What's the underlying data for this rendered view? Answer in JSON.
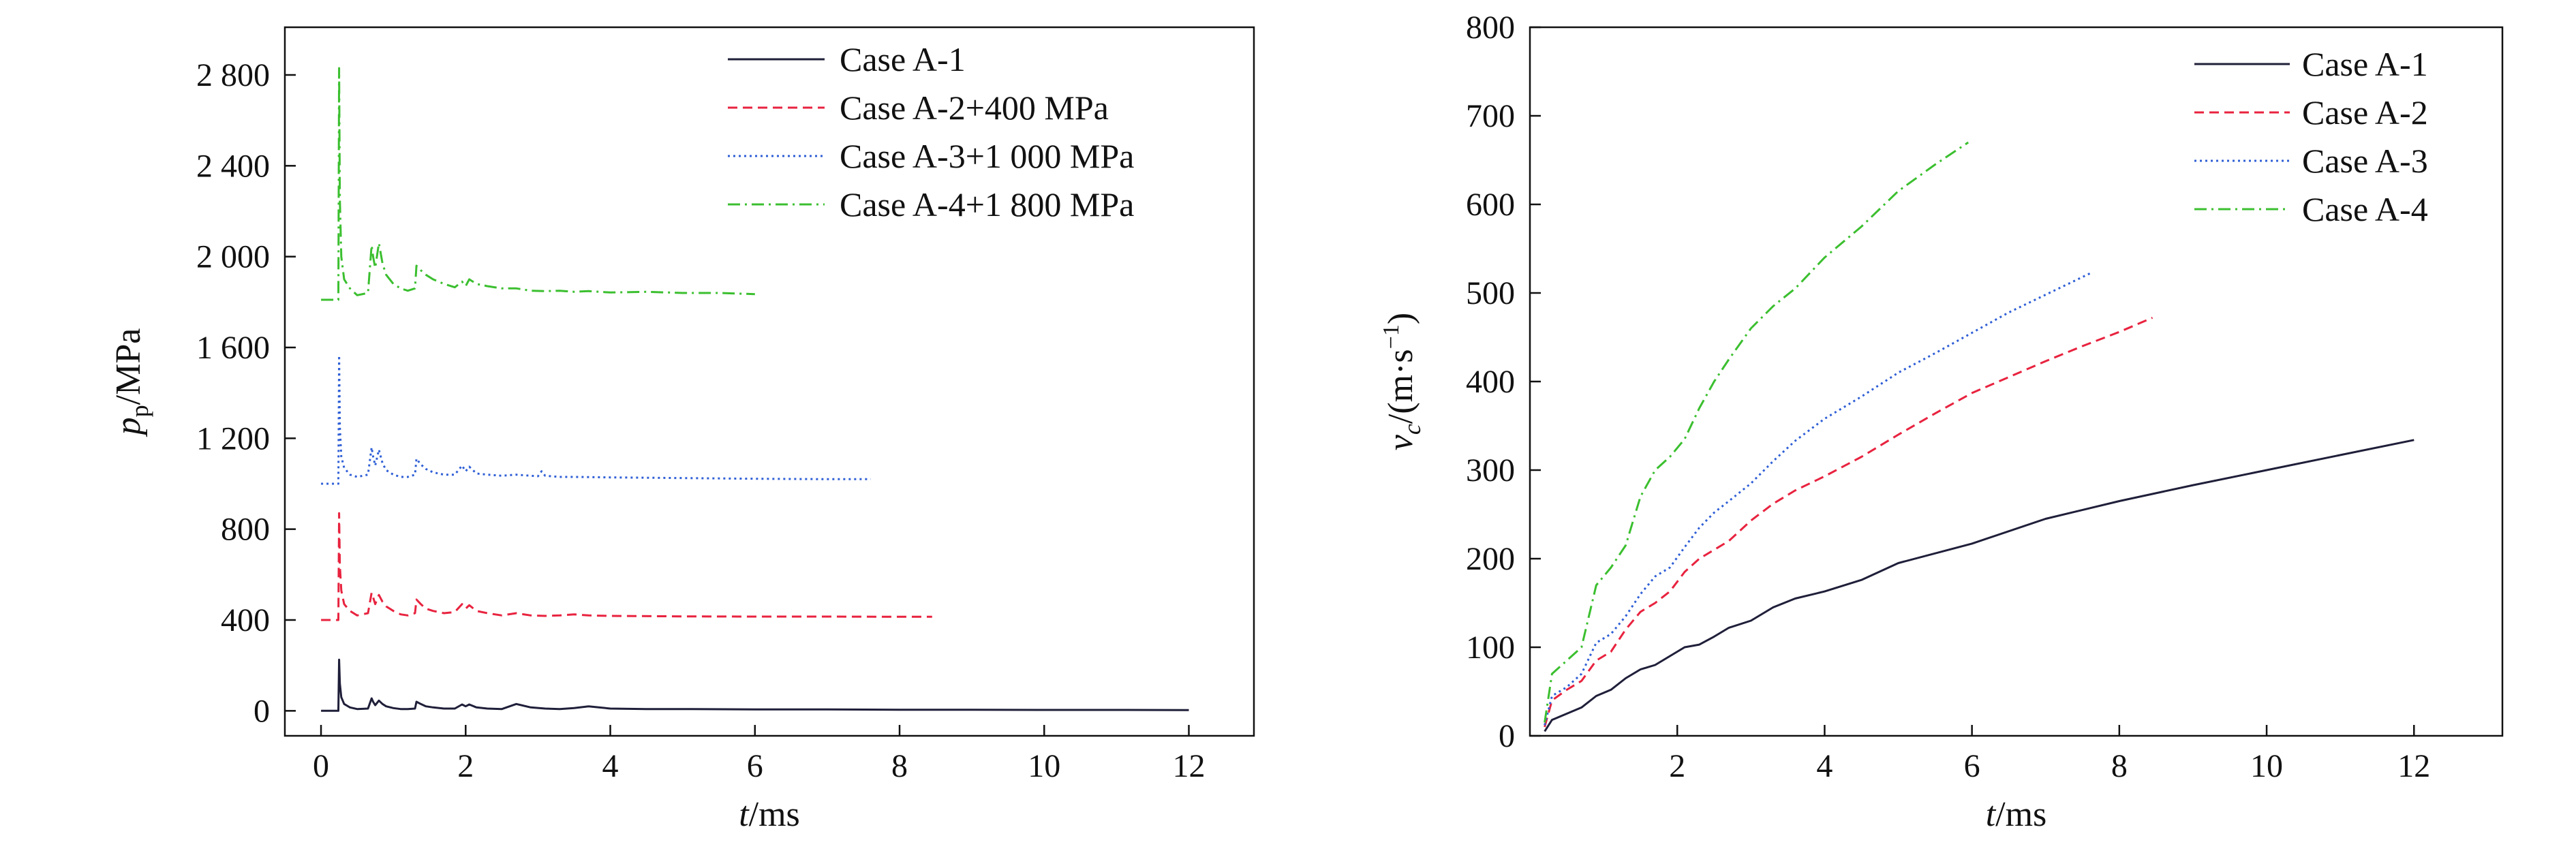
{
  "chart_data": [
    {
      "type": "line",
      "title": "",
      "xlabel": "t/ms",
      "xlabel_parts": [
        "t",
        "/ms"
      ],
      "ylabel": "p_p/MPa",
      "ylabel_parts": [
        "p",
        "p",
        "/MPa"
      ],
      "xlim": [
        -0.5,
        12.9
      ],
      "ylim": [
        -110,
        3010
      ],
      "xticks": [
        0,
        2,
        4,
        6,
        8,
        10,
        12
      ],
      "xtick_labels": [
        "0",
        "2",
        "4",
        "6",
        "8",
        "10",
        "12"
      ],
      "yticks": [
        0,
        400,
        800,
        1200,
        1600,
        2000,
        2400,
        2800
      ],
      "ytick_labels": [
        "0",
        "400",
        "800",
        "1 200",
        "1 600",
        "2 000",
        "2 400",
        "2 800"
      ],
      "legend_position": "top-right",
      "series": [
        {
          "name": "Case A-1",
          "color": "#1f1f3a",
          "dash": "solid",
          "x": [
            0,
            0.24,
            0.25,
            0.26,
            0.28,
            0.32,
            0.4,
            0.5,
            0.65,
            0.7,
            0.72,
            0.75,
            0.8,
            0.85,
            0.9,
            1.0,
            1.1,
            1.2,
            1.3,
            1.32,
            1.38,
            1.45,
            1.55,
            1.7,
            1.85,
            1.95,
            2.0,
            2.05,
            2.15,
            2.3,
            2.5,
            2.7,
            2.9,
            3.1,
            3.3,
            3.5,
            3.7,
            4.0,
            4.5,
            5,
            6,
            7,
            8,
            9,
            10,
            11,
            12
          ],
          "y": [
            0,
            0,
            225,
            120,
            60,
            30,
            15,
            8,
            10,
            55,
            40,
            25,
            45,
            30,
            20,
            12,
            8,
            8,
            10,
            40,
            30,
            20,
            15,
            10,
            10,
            28,
            20,
            28,
            15,
            10,
            8,
            30,
            15,
            10,
            8,
            12,
            20,
            10,
            8,
            8,
            6,
            6,
            5,
            5,
            4,
            4,
            3
          ]
        },
        {
          "name": "Case A-2+400 MPa",
          "color": "#e8233f",
          "dash": "dashed",
          "x": [
            0,
            0.24,
            0.25,
            0.26,
            0.28,
            0.32,
            0.4,
            0.5,
            0.65,
            0.7,
            0.72,
            0.75,
            0.8,
            0.85,
            0.9,
            1.0,
            1.1,
            1.2,
            1.3,
            1.32,
            1.38,
            1.45,
            1.55,
            1.7,
            1.85,
            1.95,
            2.0,
            2.05,
            2.15,
            2.3,
            2.5,
            2.7,
            2.9,
            3.1,
            3.3,
            3.5,
            3.7,
            4.0,
            5,
            6,
            7,
            8,
            8.45
          ],
          "y": [
            400,
            400,
            870,
            640,
            530,
            470,
            440,
            420,
            430,
            520,
            500,
            470,
            510,
            480,
            460,
            440,
            425,
            420,
            430,
            490,
            470,
            450,
            440,
            430,
            435,
            470,
            450,
            465,
            440,
            430,
            420,
            430,
            420,
            418,
            420,
            425,
            420,
            418,
            416,
            415,
            415,
            414,
            414
          ]
        },
        {
          "name": "Case A-3+1 000 MPa",
          "color": "#2f5fd6",
          "dash": "dotted",
          "x": [
            0,
            0.24,
            0.25,
            0.26,
            0.28,
            0.32,
            0.4,
            0.5,
            0.65,
            0.7,
            0.72,
            0.75,
            0.8,
            0.85,
            0.9,
            1.0,
            1.1,
            1.2,
            1.3,
            1.32,
            1.38,
            1.45,
            1.55,
            1.7,
            1.85,
            1.95,
            2.0,
            2.05,
            2.15,
            2.3,
            2.5,
            2.7,
            2.9,
            3.0,
            3.05,
            3.1,
            3.3,
            3.5,
            4.0,
            5,
            6,
            7,
            7.6
          ],
          "y": [
            1000,
            1000,
            1565,
            1250,
            1120,
            1070,
            1040,
            1030,
            1040,
            1160,
            1120,
            1080,
            1150,
            1090,
            1060,
            1040,
            1030,
            1030,
            1040,
            1110,
            1085,
            1065,
            1050,
            1040,
            1040,
            1080,
            1055,
            1075,
            1045,
            1040,
            1035,
            1040,
            1035,
            1033,
            1055,
            1035,
            1030,
            1030,
            1028,
            1025,
            1022,
            1020,
            1020
          ]
        },
        {
          "name": "Case A-4+1 800 MPa",
          "color": "#3bbf2f",
          "dash": "dashdot",
          "x": [
            0,
            0.24,
            0.25,
            0.26,
            0.28,
            0.32,
            0.4,
            0.5,
            0.65,
            0.7,
            0.72,
            0.75,
            0.8,
            0.85,
            0.9,
            1.0,
            1.1,
            1.2,
            1.3,
            1.32,
            1.38,
            1.45,
            1.55,
            1.7,
            1.85,
            1.95,
            2.0,
            2.05,
            2.15,
            2.3,
            2.5,
            2.7,
            2.9,
            3.1,
            3.3,
            3.5,
            3.7,
            4.0,
            4.5,
            5,
            5.5,
            6.0
          ],
          "y": [
            1810,
            1810,
            2830,
            2250,
            2000,
            1900,
            1860,
            1830,
            1840,
            2050,
            2000,
            1950,
            2060,
            1970,
            1920,
            1880,
            1860,
            1850,
            1860,
            1960,
            1940,
            1920,
            1900,
            1880,
            1865,
            1890,
            1870,
            1900,
            1880,
            1870,
            1860,
            1860,
            1850,
            1848,
            1850,
            1845,
            1848,
            1842,
            1845,
            1840,
            1840,
            1835
          ]
        }
      ]
    },
    {
      "type": "line",
      "title": "",
      "xlabel": "t/ms",
      "xlabel_parts": [
        "t",
        "/ms"
      ],
      "ylabel": "v_c/(m·s^-1)",
      "ylabel_parts": [
        "v",
        "c",
        "/(m·s",
        "−1",
        ")"
      ],
      "xlim": [
        0,
        13.2
      ],
      "ylim": [
        0,
        800
      ],
      "xticks": [
        2,
        4,
        6,
        8,
        10,
        12
      ],
      "xtick_labels": [
        "2",
        "4",
        "6",
        "8",
        "10",
        "12"
      ],
      "yticks": [
        0,
        100,
        200,
        300,
        400,
        500,
        600,
        700,
        800
      ],
      "ytick_labels": [
        "0",
        "100",
        "200",
        "300",
        "400",
        "500",
        "600",
        "700",
        "800"
      ],
      "legend_position": "top-right",
      "series": [
        {
          "name": "Case A-1",
          "color": "#1f1f3a",
          "dash": "solid",
          "x": [
            0.2,
            0.3,
            0.5,
            0.7,
            0.9,
            1.1,
            1.3,
            1.5,
            1.7,
            1.9,
            2.1,
            2.3,
            2.5,
            2.7,
            3.0,
            3.3,
            3.6,
            4.0,
            4.5,
            5.0,
            6.0,
            7.0,
            8.0,
            9.0,
            10.0,
            11.0,
            12.0
          ],
          "y": [
            5,
            18,
            25,
            32,
            45,
            52,
            65,
            75,
            80,
            90,
            100,
            103,
            112,
            122,
            130,
            145,
            155,
            163,
            176,
            195,
            217,
            245,
            265,
            283,
            300,
            317,
            334
          ]
        },
        {
          "name": "Case A-2",
          "color": "#e8233f",
          "dash": "dashed",
          "x": [
            0.2,
            0.3,
            0.5,
            0.7,
            0.9,
            1.1,
            1.3,
            1.5,
            1.7,
            1.9,
            2.1,
            2.3,
            2.5,
            2.7,
            3.0,
            3.3,
            3.6,
            4.0,
            4.5,
            5.0,
            5.5,
            6.0,
            6.5,
            7.0,
            7.5,
            8.0,
            8.45
          ],
          "y": [
            10,
            40,
            52,
            62,
            85,
            95,
            120,
            140,
            150,
            163,
            185,
            200,
            210,
            220,
            243,
            262,
            277,
            293,
            315,
            340,
            364,
            387,
            405,
            423,
            440,
            456,
            472
          ]
        },
        {
          "name": "Case A-3",
          "color": "#2f5fd6",
          "dash": "dotted",
          "x": [
            0.2,
            0.3,
            0.5,
            0.7,
            0.9,
            1.1,
            1.3,
            1.5,
            1.7,
            1.9,
            2.1,
            2.3,
            2.5,
            2.7,
            3.0,
            3.3,
            3.6,
            4.0,
            4.5,
            5.0,
            5.5,
            6.0,
            6.5,
            7.0,
            7.6
          ],
          "y": [
            12,
            45,
            55,
            70,
            105,
            115,
            135,
            160,
            180,
            190,
            213,
            235,
            252,
            265,
            285,
            310,
            333,
            358,
            383,
            410,
            432,
            455,
            478,
            498,
            522
          ]
        },
        {
          "name": "Case A-4",
          "color": "#3bbf2f",
          "dash": "dashdot",
          "x": [
            0.2,
            0.3,
            0.5,
            0.7,
            0.9,
            1.1,
            1.3,
            1.5,
            1.7,
            1.9,
            2.1,
            2.3,
            2.5,
            2.7,
            3.0,
            3.3,
            3.6,
            4.0,
            4.5,
            5.0,
            5.5,
            5.95
          ],
          "y": [
            15,
            70,
            85,
            100,
            170,
            190,
            215,
            270,
            300,
            315,
            335,
            370,
            400,
            425,
            460,
            485,
            505,
            540,
            575,
            615,
            645,
            670
          ]
        }
      ]
    }
  ]
}
